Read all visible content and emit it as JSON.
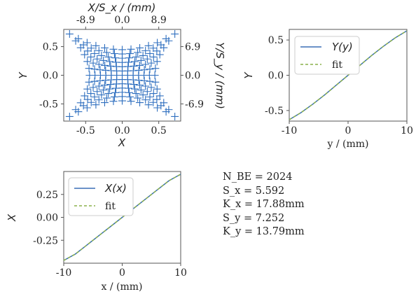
{
  "chart_data": [
    {
      "type": "scatter",
      "xlabel": "X",
      "ylabel": "Y",
      "xlim": [
        -0.8,
        0.8
      ],
      "ylim": [
        -0.8,
        0.8
      ],
      "xticks": [
        "-0.5",
        "0.0",
        "0.5"
      ],
      "xtick_values": [
        -0.5,
        0.0,
        0.5
      ],
      "yticks": [
        "0.5",
        "0.0",
        "-0.5"
      ],
      "ytick_values": [
        0.5,
        0.0,
        -0.5
      ],
      "top_label": "X/S_x / (mm)",
      "top_ticks": [
        "-8.9",
        "0.0",
        "8.9"
      ],
      "right_label": "Y/S_y / (mm)",
      "right_ticks": [
        "6.9",
        "0.0",
        "-6.9"
      ],
      "marker": "+",
      "color": "#2f6fbf",
      "grid_rows": 13,
      "grid_cols": 13
    },
    {
      "type": "line",
      "xlabel": "y / (mm)",
      "ylabel": "Y",
      "xlim": [
        -10,
        10
      ],
      "ylim": [
        -0.65,
        0.65
      ],
      "xticks": [
        "-10",
        "0",
        "10"
      ],
      "xtick_values": [
        -10,
        0,
        10
      ],
      "yticks": [
        "0.5",
        "0.0",
        "-0.5"
      ],
      "ytick_values": [
        0.5,
        0.0,
        -0.5
      ],
      "series": [
        {
          "name": "Y(y)",
          "color": "#3a6fb5",
          "style": "solid"
        },
        {
          "name": "fit",
          "color": "#8ab04a",
          "style": "dashed"
        }
      ],
      "x": [
        -10,
        -8,
        -6,
        -4,
        -2,
        0,
        2,
        4,
        6,
        8,
        10
      ],
      "values": [
        -0.63,
        -0.53,
        -0.41,
        -0.28,
        -0.14,
        0.0,
        0.14,
        0.28,
        0.41,
        0.53,
        0.63
      ],
      "legend": "top-left"
    },
    {
      "type": "line",
      "xlabel": "x / (mm)",
      "ylabel": "X",
      "xlim": [
        -10,
        10
      ],
      "ylim": [
        -0.5,
        0.5
      ],
      "xticks": [
        "-10",
        "0",
        "10"
      ],
      "xtick_values": [
        -10,
        0,
        10
      ],
      "yticks": [
        "0.25",
        "0.00",
        "-0.25"
      ],
      "ytick_values": [
        0.25,
        0.0,
        -0.25
      ],
      "series": [
        {
          "name": "X(x)",
          "color": "#3a6fb5",
          "style": "solid"
        },
        {
          "name": "fit",
          "color": "#8ab04a",
          "style": "dashed"
        }
      ],
      "x": [
        -10,
        -8,
        -6,
        -4,
        -2,
        0,
        2,
        4,
        6,
        8,
        10
      ],
      "values": [
        -0.47,
        -0.4,
        -0.3,
        -0.2,
        -0.1,
        0.0,
        0.1,
        0.2,
        0.3,
        0.4,
        0.47
      ],
      "legend": "top-left"
    }
  ],
  "stats": {
    "n_be": "N_BE = 2024",
    "sx": "S_x = 5.592",
    "kx": "K_x = 17.88mm",
    "sy": "S_y = 7.252",
    "ky": "K_y = 13.79mm"
  }
}
